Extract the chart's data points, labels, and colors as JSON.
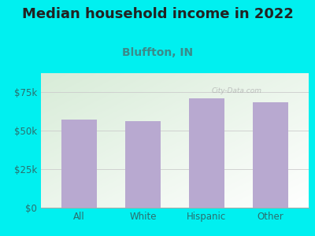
{
  "title": "Median household income in 2022",
  "subtitle": "Bluffton, IN",
  "categories": [
    "All",
    "White",
    "Hispanic",
    "Other"
  ],
  "values": [
    57000,
    56000,
    70500,
    68000
  ],
  "bar_color": "#b8a9d0",
  "background_color": "#00f0f0",
  "plot_bg_top_left": "#d8ecd8",
  "plot_bg_bottom_right": "#ffffff",
  "title_color": "#222222",
  "subtitle_color": "#3a8a8a",
  "tick_color": "#2c6e6e",
  "yticks": [
    0,
    25000,
    50000,
    75000
  ],
  "ytick_labels": [
    "$0",
    "$25k",
    "$50k",
    "$75k"
  ],
  "ylim": [
    0,
    87000
  ],
  "watermark": "City-Data.com",
  "title_fontsize": 13,
  "subtitle_fontsize": 10
}
